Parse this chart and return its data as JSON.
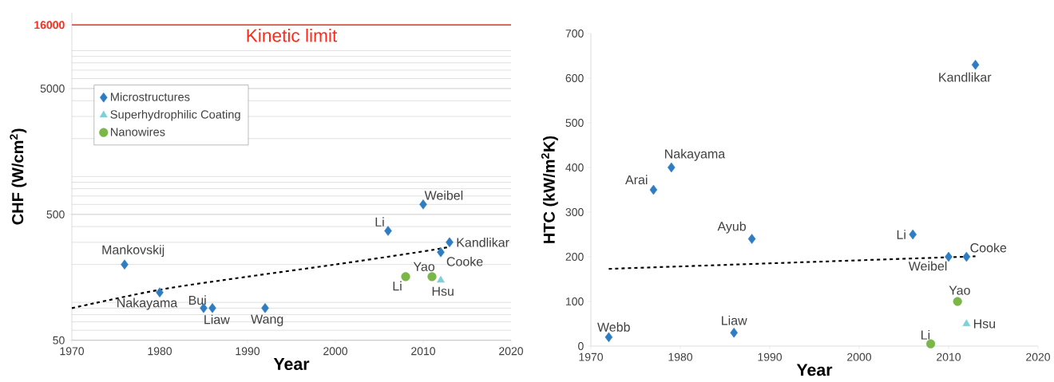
{
  "chart_data": [
    {
      "type": "scatter",
      "xlabel": "Year",
      "ylabel": "CHF (W/cm$^{2}$)",
      "xlim": [
        1970,
        2020
      ],
      "xticks": [
        1970,
        1980,
        1990,
        2000,
        2010,
        2020
      ],
      "ylim": [
        50,
        20000
      ],
      "yticks": [
        50,
        500,
        5000,
        16000
      ],
      "log": "y",
      "grid": "y",
      "legend": "top left",
      "series": [
        {
          "name": "Microstructures",
          "color": "#2e7dc2",
          "marker": "diamond",
          "x": [
            1976,
            1980,
            1985,
            1986,
            1992,
            2006,
            2010,
            2013,
            2012
          ],
          "values": [
            200,
            120,
            90,
            90,
            90,
            370,
            600,
            300,
            250
          ]
        },
        {
          "name": "Superhydrophilic Coating",
          "color": "#7fcfd9",
          "marker": "triangle",
          "x": [
            2012
          ],
          "values": [
            150
          ]
        },
        {
          "name": "Nanowires",
          "color": "#7ab648",
          "marker": "circle",
          "x": [
            2008,
            2011
          ],
          "values": [
            160,
            160
          ]
        },
        {
          "type": "line",
          "color": "#000000",
          "marker": "none",
          "line_style": "dashed",
          "x": [
            1970,
            1980,
            1990,
            2000,
            2010,
            2013
          ],
          "values": [
            90,
            126,
            160,
            200,
            254,
            276
          ]
        }
      ],
      "ref_lines": [
        {
          "axis": "y",
          "value": 16000,
          "label": "Kinetic limit",
          "color": "#ff2a1a"
        }
      ],
      "annotations": [
        {
          "text": "Mankovskij",
          "x": 1976,
          "y": 200
        },
        {
          "text": "Nakayama",
          "x": 1980,
          "y": 120
        },
        {
          "text": "Bui",
          "x": 1985,
          "y": 90
        },
        {
          "text": "Liaw",
          "x": 1986,
          "y": 90
        },
        {
          "text": "Wang",
          "x": 1992,
          "y": 90
        },
        {
          "text": "Li",
          "x": 2006,
          "y": 370
        },
        {
          "text": "Weibel",
          "x": 2010,
          "y": 600
        },
        {
          "text": "Kandlikar",
          "x": 2013,
          "y": 300
        },
        {
          "text": "Cooke",
          "x": 2012,
          "y": 250
        },
        {
          "text": "Yao",
          "x": 2011,
          "y": 160
        },
        {
          "text": "Li",
          "x": 2008,
          "y": 160
        },
        {
          "text": "Hsu",
          "x": 2012,
          "y": 150
        }
      ]
    },
    {
      "type": "scatter",
      "xlabel": "Year",
      "ylabel": "HTC (kW/m$^{2}$K)",
      "xlim": [
        1970,
        2020
      ],
      "xticks": [
        1970,
        1980,
        1990,
        2000,
        2010,
        2020
      ],
      "ylim": [
        0,
        700
      ],
      "yticks": [
        0,
        100,
        200,
        300,
        400,
        500,
        600,
        700
      ],
      "series": [
        {
          "color": "#2e7dc2",
          "marker": "diamond",
          "x": [
            1972,
            1977,
            1979,
            1986,
            1988,
            2006,
            2010,
            2012,
            2013
          ],
          "values": [
            20,
            350,
            400,
            30,
            240,
            250,
            200,
            200,
            630
          ]
        },
        {
          "color": "#7fcfd9",
          "marker": "triangle",
          "x": [
            2012
          ],
          "values": [
            50
          ]
        },
        {
          "color": "#7ab648",
          "marker": "circle",
          "x": [
            2011,
            2008
          ],
          "values": [
            100,
            5
          ]
        },
        {
          "type": "line",
          "color": "#000000",
          "marker": "none",
          "line_style": "dashed",
          "x": [
            1972,
            2013
          ],
          "values": [
            173,
            201
          ]
        }
      ],
      "annotations": [
        {
          "text": "Webb",
          "x": 1972,
          "y": 20
        },
        {
          "text": "Arai",
          "x": 1977,
          "y": 350
        },
        {
          "text": "Nakayama",
          "x": 1979,
          "y": 400
        },
        {
          "text": "Liaw",
          "x": 1986,
          "y": 30
        },
        {
          "text": "Ayub",
          "x": 1988,
          "y": 240
        },
        {
          "text": "Li",
          "x": 2006,
          "y": 250
        },
        {
          "text": "Weibel",
          "x": 2010,
          "y": 200
        },
        {
          "text": "Cooke",
          "x": 2012,
          "y": 200
        },
        {
          "text": "Kandlikar",
          "x": 2013,
          "y": 630
        },
        {
          "text": "Yao",
          "x": 2011,
          "y": 100
        },
        {
          "text": "Hsu",
          "x": 2012,
          "y": 50
        },
        {
          "text": "Li",
          "x": 2008,
          "y": 5
        }
      ]
    }
  ]
}
